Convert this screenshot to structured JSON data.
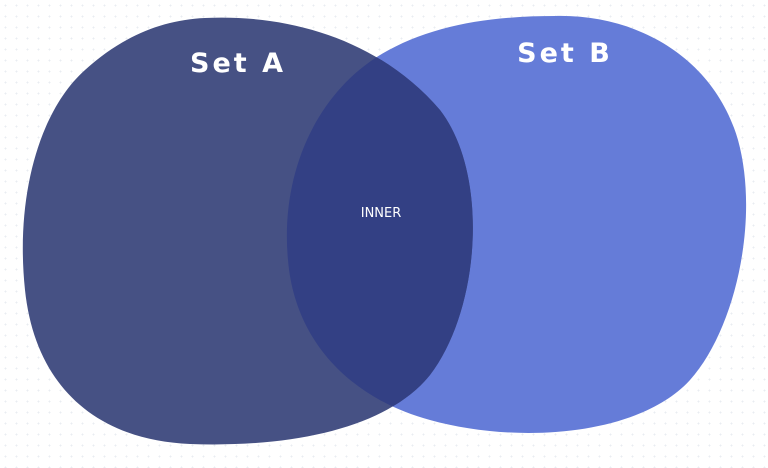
{
  "diagram": {
    "type": "venn",
    "sets": [
      {
        "id": "a",
        "label": "Set A",
        "color": "#465184"
      },
      {
        "id": "b",
        "label": "Set B",
        "color": "#657cd8"
      }
    ],
    "intersection": {
      "label": "INNER",
      "color": "#334084"
    }
  }
}
